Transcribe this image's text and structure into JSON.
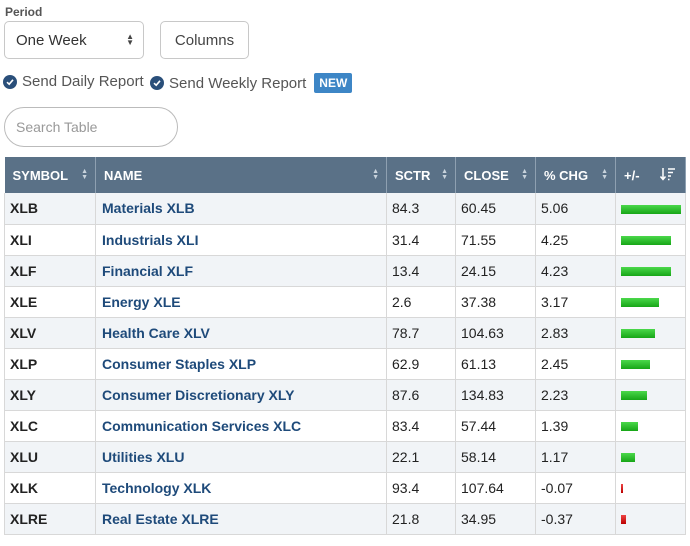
{
  "period": {
    "label": "Period",
    "selected": "One Week"
  },
  "columns_button": "Columns",
  "reports": [
    {
      "label": "Send Daily Report"
    },
    {
      "label": "Send Weekly Report",
      "badge": "NEW"
    }
  ],
  "search": {
    "placeholder": "Search Table",
    "value": ""
  },
  "table": {
    "headers": [
      "SYMBOL",
      "NAME",
      "SCTR",
      "CLOSE",
      "% CHG",
      "+/-"
    ],
    "rows": [
      {
        "symbol": "XLB",
        "name": "Materials XLB",
        "sctr": "84.3",
        "close": "60.45",
        "chg": "5.06",
        "bar": 5.06
      },
      {
        "symbol": "XLI",
        "name": "Industrials XLI",
        "sctr": "31.4",
        "close": "71.55",
        "chg": "4.25",
        "bar": 4.25
      },
      {
        "symbol": "XLF",
        "name": "Financial XLF",
        "sctr": "13.4",
        "close": "24.15",
        "chg": "4.23",
        "bar": 4.23
      },
      {
        "symbol": "XLE",
        "name": "Energy XLE",
        "sctr": "2.6",
        "close": "37.38",
        "chg": "3.17",
        "bar": 3.17
      },
      {
        "symbol": "XLV",
        "name": "Health Care XLV",
        "sctr": "78.7",
        "close": "104.63",
        "chg": "2.83",
        "bar": 2.83
      },
      {
        "symbol": "XLP",
        "name": "Consumer Staples XLP",
        "sctr": "62.9",
        "close": "61.13",
        "chg": "2.45",
        "bar": 2.45
      },
      {
        "symbol": "XLY",
        "name": "Consumer Discretionary XLY",
        "sctr": "87.6",
        "close": "134.83",
        "chg": "2.23",
        "bar": 2.23
      },
      {
        "symbol": "XLC",
        "name": "Communication Services XLC",
        "sctr": "83.4",
        "close": "57.44",
        "chg": "1.39",
        "bar": 1.39
      },
      {
        "symbol": "XLU",
        "name": "Utilities XLU",
        "sctr": "22.1",
        "close": "58.14",
        "chg": "1.17",
        "bar": 1.17
      },
      {
        "symbol": "XLK",
        "name": "Technology XLK",
        "sctr": "93.4",
        "close": "107.64",
        "chg": "-0.07",
        "bar": -0.07
      },
      {
        "symbol": "XLRE",
        "name": "Real Estate XLRE",
        "sctr": "21.8",
        "close": "34.95",
        "chg": "-0.37",
        "bar": -0.37
      }
    ]
  },
  "colors": {
    "header_bg": "#5a7187",
    "link": "#1e4a7a",
    "positive": "#17a617",
    "negative": "#cc0000",
    "badge": "#3d86c6"
  },
  "icons": {
    "sort": "sort-arrows-icon",
    "sort_desc": "sort-descending-icon",
    "check": "check-circle-icon"
  }
}
